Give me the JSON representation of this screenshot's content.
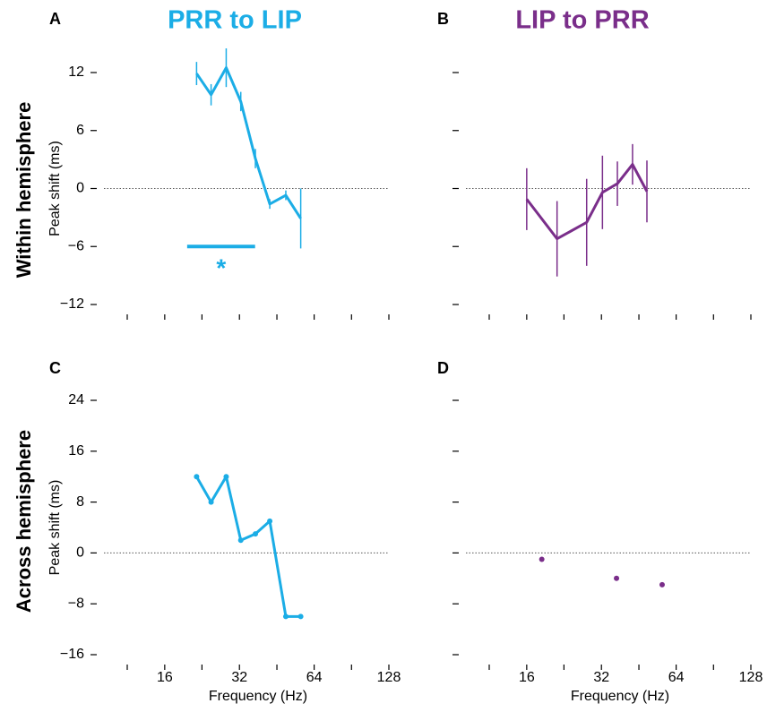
{
  "column_titles": [
    "PRR to LIP",
    "LIP to PRR"
  ],
  "row_labels": [
    "Within hemisphere",
    "Across hemisphere"
  ],
  "chart_data": [
    {
      "type": "line",
      "panel_label": "A",
      "ylabel": "Peak shift (ms)",
      "xscale": "log2",
      "xlim": [
        11.3,
        128
      ],
      "xticks": [
        16,
        32,
        64,
        128
      ],
      "xminorticks": [
        11.3,
        22.6,
        45.3,
        90.5
      ],
      "xtick_labels": false,
      "ylim": [
        -12,
        12
      ],
      "yticks": [
        {
          "value": -12,
          "label": "−12"
        },
        {
          "value": -6,
          "label": "−6"
        },
        0,
        6,
        12
      ],
      "ytick_labels": true,
      "zero_line": true,
      "markers": false,
      "x": [
        21.5,
        24.6,
        28.3,
        32.4,
        37.1,
        42.4,
        49.2,
        56.5
      ],
      "series": [
        {
          "color": "#1badE6",
          "values": [
            11.9,
            9.7,
            12.5,
            9.0,
            3.1,
            -1.6,
            -0.7,
            -3.1
          ],
          "errors": [
            1.2,
            1.1,
            2.0,
            1.0,
            1.0,
            0.5,
            0.5,
            3.1
          ]
        }
      ],
      "significance": {
        "x": [
          19.7,
          37.0
        ],
        "y": -6,
        "label": "*"
      }
    },
    {
      "type": "line",
      "panel_label": "B",
      "xscale": "log2",
      "xlim": [
        11.3,
        128
      ],
      "xticks": [
        16,
        32,
        64,
        128
      ],
      "xminorticks": [
        11.3,
        22.6,
        45.3,
        90.5
      ],
      "xtick_labels": false,
      "ylim": [
        -12,
        12
      ],
      "yticks": [
        -12,
        -6,
        0,
        6,
        12
      ],
      "ytick_labels": false,
      "zero_line": true,
      "markers": false,
      "x": [
        16,
        21.2,
        27.9,
        32.3,
        37.1,
        42.7,
        48.8
      ],
      "series": [
        {
          "color": "#7a2e8a",
          "values": [
            -1.1,
            -5.2,
            -3.5,
            -0.4,
            0.5,
            2.5,
            -0.3
          ],
          "errors": [
            3.2,
            3.9,
            4.5,
            3.8,
            2.3,
            2.1,
            3.2
          ]
        }
      ]
    },
    {
      "type": "line",
      "panel_label": "C",
      "ylabel": "Peak shift (ms)",
      "xlabel": "Frequency (Hz)",
      "xscale": "log2",
      "xlim": [
        11.3,
        128
      ],
      "xticks": [
        16,
        32,
        64,
        128
      ],
      "xminorticks": [
        11.3,
        22.6,
        45.3,
        90.5
      ],
      "xtick_labels": true,
      "ylim": [
        -16,
        24
      ],
      "yticks": [
        {
          "value": -16,
          "label": "−16"
        },
        {
          "value": -8,
          "label": "−8"
        },
        0,
        8,
        16,
        24
      ],
      "ytick_labels": true,
      "zero_line": true,
      "markers": true,
      "x": [
        21.5,
        24.6,
        28.3,
        32.4,
        37.1,
        42.4,
        49.2,
        56.5
      ],
      "series": [
        {
          "color": "#1badE6",
          "values": [
            12,
            8,
            12,
            2,
            3,
            5,
            -10,
            -10
          ]
        }
      ]
    },
    {
      "type": "scatter",
      "panel_label": "D",
      "xlabel": "Frequency (Hz)",
      "xscale": "log2",
      "xlim": [
        11.3,
        128
      ],
      "xticks": [
        16,
        32,
        64,
        128
      ],
      "xminorticks": [
        11.3,
        22.6,
        45.3,
        90.5
      ],
      "xtick_labels": true,
      "ylim": [
        -16,
        24
      ],
      "yticks": [
        -16,
        -8,
        0,
        8,
        16,
        24
      ],
      "ytick_labels": false,
      "zero_line": true,
      "markers": true,
      "x": [
        18.4,
        36.8,
        56.2
      ],
      "series": [
        {
          "color": "#7a2e8a",
          "values": [
            -1,
            -4,
            -5
          ]
        }
      ]
    }
  ]
}
